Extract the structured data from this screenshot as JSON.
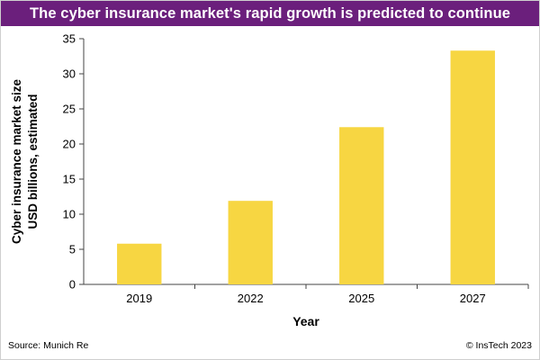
{
  "header": {
    "title": "The cyber insurance market's rapid growth is predicted to continue"
  },
  "colors": {
    "header_background": "#6b1f7c",
    "bar_fill": "#f7d642",
    "axis": "#444444"
  },
  "chart_data": {
    "type": "bar",
    "categories": [
      "2019",
      "2022",
      "2025",
      "2027"
    ],
    "values": [
      5.8,
      11.9,
      22.4,
      33.3
    ],
    "xlabel": "Year",
    "ylabel": [
      "Cyber insurance market size",
      "USD billions, estimated"
    ],
    "ylim": [
      0,
      35
    ],
    "yticks": [
      0,
      5,
      10,
      15,
      20,
      25,
      30,
      35
    ],
    "grid": false,
    "legend": "none"
  },
  "footer": {
    "source": "Source: Munich Re",
    "copyright": "© InsTech 2023"
  }
}
